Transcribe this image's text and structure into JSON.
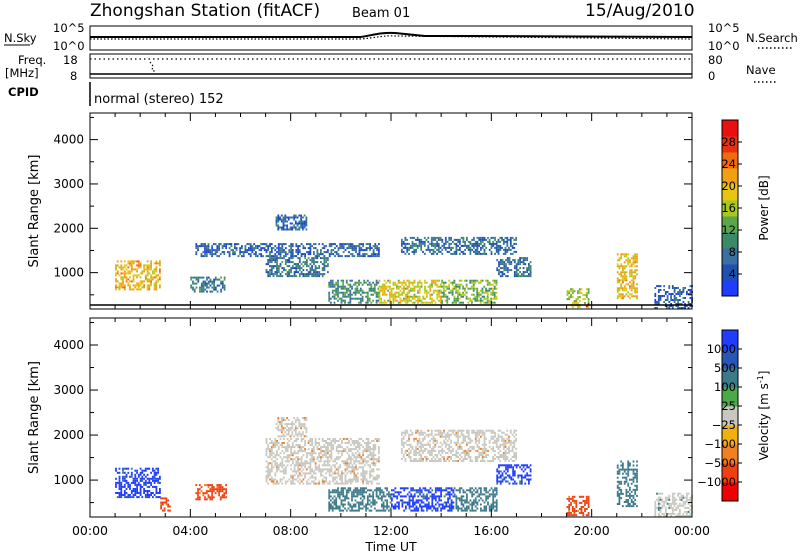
{
  "header": {
    "station": "Zhongshan Station (fitACF)",
    "beam": "Beam 01",
    "date": "15/Aug/2010"
  },
  "strips": {
    "nsky_label": "N.Sky",
    "nsky_ticks": [
      "10^5",
      "10^0"
    ],
    "nsearch_label": "N.Search",
    "nsearch_ticks": [
      "10^5",
      "10^0"
    ],
    "freq_label": "Freq.",
    "freq_unit": "[MHz]",
    "freq_ticks": [
      "18",
      "8"
    ],
    "nave_label": "Nave",
    "nave_ticks": [
      "80",
      "0"
    ],
    "cpid_label": "CPID",
    "cpid_value": "normal (stereo) 152"
  },
  "chart_data": [
    {
      "type": "heatmap",
      "name": "power",
      "ylabel": "Slant Range [km]",
      "xlabel": "Time UT",
      "x_ticks": [
        "00:00",
        "04:00",
        "08:00",
        "12:00",
        "16:00",
        "20:00",
        "00:00"
      ],
      "x_range_hours": [
        0,
        24
      ],
      "y_ticks": [
        1000,
        2000,
        3000,
        4000
      ],
      "ylim": [
        180,
        4600
      ],
      "colorbar_label": "Power [dB]",
      "colorbar_ticks": [
        "4",
        "8",
        "12",
        "16",
        "20",
        "24",
        "28"
      ],
      "colorbar_range": [
        0,
        32
      ],
      "colorbar_colors": [
        "#1f3cff",
        "#1f4fb0",
        "#3a6fa0",
        "#3a8a6a",
        "#5aa648",
        "#a8c81e",
        "#e8c414",
        "#f0a010",
        "#f06a10",
        "#e83010",
        "#e81010"
      ],
      "regions": [
        {
          "t0": 1.0,
          "t1": 2.8,
          "r0": 600,
          "r1": 1250,
          "value": 20
        },
        {
          "t0": 4.0,
          "t1": 5.4,
          "r0": 550,
          "r1": 900,
          "value": 8
        },
        {
          "t0": 4.2,
          "t1": 11.5,
          "r0": 1350,
          "r1": 1650,
          "value": 6
        },
        {
          "t0": 7.0,
          "t1": 9.5,
          "r0": 900,
          "r1": 1350,
          "value": 8
        },
        {
          "t0": 7.4,
          "t1": 8.6,
          "r0": 1950,
          "r1": 2300,
          "value": 6
        },
        {
          "t0": 9.5,
          "t1": 11.5,
          "r0": 300,
          "r1": 800,
          "value": 10
        },
        {
          "t0": 11.5,
          "t1": 14.0,
          "r0": 300,
          "r1": 800,
          "value": 18
        },
        {
          "t0": 14.0,
          "t1": 16.2,
          "r0": 300,
          "r1": 800,
          "value": 14
        },
        {
          "t0": 12.4,
          "t1": 17.0,
          "r0": 1400,
          "r1": 1800,
          "value": 7
        },
        {
          "t0": 16.2,
          "t1": 17.6,
          "r0": 900,
          "r1": 1350,
          "value": 7
        },
        {
          "t0": 19.0,
          "t1": 19.9,
          "r0": 200,
          "r1": 650,
          "value": 16
        },
        {
          "t0": 19.7,
          "t1": 19.9,
          "r0": 180,
          "r1": 280,
          "value": 30
        },
        {
          "t0": 21.0,
          "t1": 21.8,
          "r0": 400,
          "r1": 1400,
          "value": 20
        },
        {
          "t0": 22.5,
          "t1": 24.0,
          "r0": 180,
          "r1": 700,
          "value": 6
        }
      ]
    },
    {
      "type": "heatmap",
      "name": "velocity",
      "ylabel": "Slant Range [km]",
      "xlabel": "Time UT",
      "x_ticks": [
        "00:00",
        "04:00",
        "08:00",
        "12:00",
        "16:00",
        "20:00",
        "00:00"
      ],
      "x_range_hours": [
        0,
        24
      ],
      "y_ticks": [
        1000,
        2000,
        3000,
        4000
      ],
      "ylim": [
        180,
        4600
      ],
      "colorbar_label": "Velocity [m s^-1]",
      "colorbar_ticks": [
        "1000",
        "500",
        "100",
        "25",
        "−25",
        "−100",
        "−500",
        "−1000"
      ],
      "colorbar_colors": [
        "#1f3cff",
        "#2a55b8",
        "#3c7a8a",
        "#4aaa4a",
        "#c8c8c0",
        "#f0b010",
        "#f08020",
        "#f04010",
        "#f00000"
      ],
      "regions": [
        {
          "t0": 1.0,
          "t1": 2.8,
          "r0": 600,
          "r1": 1250,
          "value": 1000
        },
        {
          "t0": 2.8,
          "t1": 3.2,
          "r0": 300,
          "r1": 600,
          "value": -500
        },
        {
          "t0": 4.2,
          "t1": 5.4,
          "r0": 550,
          "r1": 900,
          "value": -500
        },
        {
          "t0": 7.0,
          "t1": 11.5,
          "r0": 900,
          "r1": 1900,
          "value": 0
        },
        {
          "t0": 7.4,
          "t1": 8.6,
          "r0": 1950,
          "r1": 2400,
          "value": 0
        },
        {
          "t0": 9.5,
          "t1": 12.0,
          "r0": 300,
          "r1": 800,
          "value": 100
        },
        {
          "t0": 12.0,
          "t1": 14.5,
          "r0": 300,
          "r1": 800,
          "value": 1000
        },
        {
          "t0": 14.5,
          "t1": 16.2,
          "r0": 300,
          "r1": 800,
          "value": 100
        },
        {
          "t0": 12.4,
          "t1": 17.0,
          "r0": 1400,
          "r1": 2100,
          "value": 0
        },
        {
          "t0": 16.2,
          "t1": 17.6,
          "r0": 900,
          "r1": 1350,
          "value": 1000
        },
        {
          "t0": 19.0,
          "t1": 19.9,
          "r0": 200,
          "r1": 650,
          "value": -500
        },
        {
          "t0": 21.0,
          "t1": 21.8,
          "r0": 400,
          "r1": 1400,
          "value": 100
        },
        {
          "t0": 22.5,
          "t1": 24.0,
          "r0": 180,
          "r1": 700,
          "value": 25
        }
      ]
    }
  ]
}
